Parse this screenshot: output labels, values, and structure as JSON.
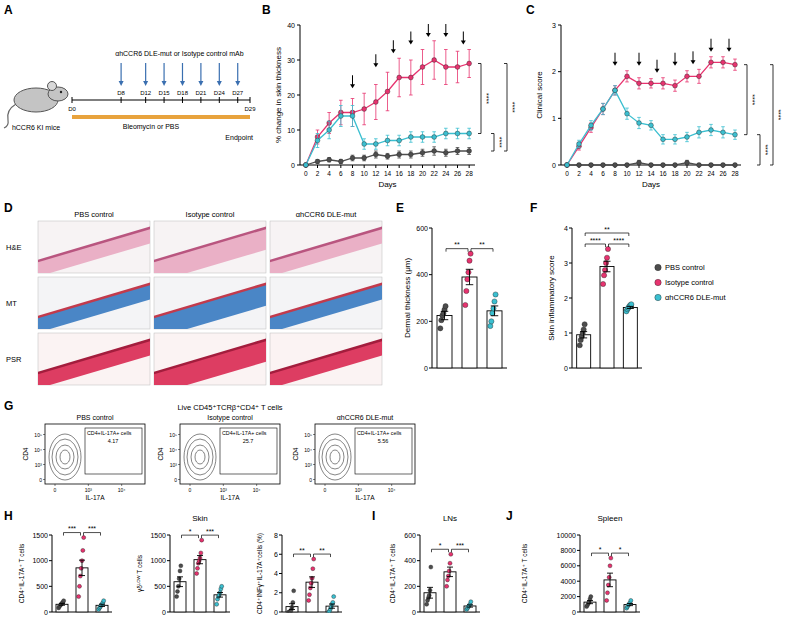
{
  "schematic": {
    "panel": "A",
    "mouse": "hCCR6 KI mice",
    "treatment": "αhCCR6 DLE-mut or Isotype control mAb",
    "challenge": "Bleomycin or PBS",
    "endpoint": "Endpoint",
    "days": [
      {
        "value": 0,
        "label": "D0"
      },
      {
        "value": 8,
        "label": "D8"
      },
      {
        "value": 12,
        "label": "D12"
      },
      {
        "value": 15,
        "label": "D15"
      },
      {
        "value": 18,
        "label": "D18"
      },
      {
        "value": 21,
        "label": "D21"
      },
      {
        "value": 24,
        "label": "D24"
      },
      {
        "value": 27,
        "label": "D27"
      },
      {
        "value": 29,
        "label": "D29"
      }
    ],
    "dose_days": [
      8,
      12,
      15,
      18,
      21,
      24,
      27
    ]
  },
  "histology": {
    "panel": "D",
    "columns": [
      "PBS control",
      "Isotype control",
      "αhCCR6 DLE-mut"
    ],
    "rows": [
      "H&E",
      "MT",
      "PSR"
    ]
  },
  "flow": {
    "panel": "G",
    "title": "Live CD45⁺TCRβ⁺CD4⁺ T cells",
    "xlabel": "IL-17A",
    "ylabel": "CD4",
    "x_tick_labels": [
      "0",
      "10³",
      "10⁴"
    ],
    "y_tick_labels": [
      "0",
      "10³",
      "10⁴",
      "10⁵"
    ],
    "plots": [
      {
        "title": "PBS control",
        "gate": "CD4+IL-17A+ cells",
        "percent": 4.17
      },
      {
        "title": "Isotype control",
        "gate": "CD4+IL-17A+ cells",
        "percent": 25.7
      },
      {
        "title": "αhCCR6 DLE-mut",
        "gate": "CD4+IL-17A+ cells",
        "percent": 5.56
      }
    ]
  },
  "chart_data": [
    {
      "panel": "B",
      "type": "line",
      "marker": "circle",
      "xlabel": "Days",
      "ylabel": "% change in skin thickness",
      "x": [
        0,
        2,
        4,
        6,
        8,
        10,
        12,
        14,
        16,
        18,
        20,
        22,
        24,
        26,
        28
      ],
      "xlim": [
        -1,
        29
      ],
      "xticks": [
        0,
        2,
        4,
        6,
        8,
        10,
        12,
        14,
        16,
        18,
        20,
        22,
        24,
        26,
        28
      ],
      "ylim": [
        0,
        40
      ],
      "yticks": [
        0,
        10,
        20,
        30,
        40
      ],
      "series": [
        {
          "color": "#4d4d4d",
          "values": [
            0,
            1,
            1.5,
            1,
            2,
            2,
            3,
            2.5,
            3,
            3,
            3.5,
            4,
            3.5,
            4,
            4
          ],
          "errors": [
            0,
            0.5,
            0.6,
            0.6,
            0.8,
            0.8,
            1,
            0.8,
            1,
            1,
            1,
            1.2,
            1,
            1,
            1
          ]
        },
        {
          "color": "#e7336f",
          "values": [
            0,
            8,
            12,
            15,
            15,
            16,
            18,
            21,
            25,
            25,
            28,
            30,
            28,
            28,
            29
          ],
          "errors": [
            0,
            2,
            3,
            3.5,
            4,
            4.5,
            5,
            5.5,
            5.5,
            5,
            5,
            5.5,
            5,
            4.5,
            4
          ]
        },
        {
          "color": "#3bbfd0",
          "values": [
            0,
            7,
            10,
            14,
            14,
            6,
            6,
            7,
            7,
            8,
            8,
            8,
            9,
            9,
            9
          ],
          "errors": [
            0,
            2,
            2.5,
            3,
            3,
            1.5,
            1.5,
            1.5,
            1.5,
            1.5,
            1.5,
            1.5,
            1.5,
            1.5,
            1.5
          ]
        }
      ],
      "arrows": [
        8,
        12,
        15,
        18,
        21,
        24,
        27
      ],
      "significance": [
        {
          "text": "****",
          "from": 1,
          "to": 2
        },
        {
          "text": "****",
          "from": 0,
          "to": 2
        },
        {
          "text": "****",
          "from": 0,
          "to": 1
        }
      ]
    },
    {
      "panel": "C",
      "type": "line",
      "marker": "circle",
      "xlabel": "Days",
      "ylabel": "Clinical score",
      "x": [
        0,
        2,
        4,
        6,
        8,
        10,
        12,
        14,
        16,
        18,
        20,
        22,
        24,
        26,
        28
      ],
      "xlim": [
        -1,
        29
      ],
      "xticks": [
        0,
        2,
        4,
        6,
        8,
        10,
        12,
        14,
        16,
        18,
        20,
        22,
        24,
        26,
        28
      ],
      "ylim": [
        0,
        3
      ],
      "yticks": [
        0,
        1,
        2,
        3
      ],
      "series": [
        {
          "color": "#4d4d4d",
          "values": [
            0,
            0,
            0,
            0,
            0,
            0,
            0.05,
            0,
            0,
            0,
            0.05,
            0,
            0,
            0,
            0
          ],
          "errors": [
            0,
            0,
            0,
            0,
            0,
            0,
            0.05,
            0,
            0,
            0,
            0.05,
            0,
            0,
            0,
            0
          ]
        },
        {
          "color": "#e7336f",
          "values": [
            0,
            0.4,
            0.8,
            1.2,
            1.6,
            1.9,
            1.75,
            1.75,
            1.75,
            1.7,
            1.9,
            1.9,
            2.2,
            2.2,
            2.15
          ],
          "errors": [
            0,
            0.08,
            0.1,
            0.12,
            0.1,
            0.12,
            0.12,
            0.1,
            0.12,
            0.12,
            0.12,
            0.15,
            0.12,
            0.12,
            0.12
          ]
        },
        {
          "color": "#3bbfd0",
          "values": [
            0,
            0.45,
            0.85,
            1.2,
            1.6,
            1.1,
            0.9,
            0.85,
            0.55,
            0.55,
            0.6,
            0.7,
            0.75,
            0.7,
            0.65
          ],
          "errors": [
            0,
            0.08,
            0.1,
            0.12,
            0.1,
            0.12,
            0.12,
            0.1,
            0.1,
            0.1,
            0.1,
            0.12,
            0.12,
            0.12,
            0.1
          ]
        }
      ],
      "arrows": [
        8,
        12,
        15,
        18,
        21,
        24,
        27
      ],
      "significance": [
        {
          "text": "****",
          "from": 1,
          "to": 2
        },
        {
          "text": "****",
          "from": 0,
          "to": 2
        },
        {
          "text": "****",
          "from": 0,
          "to": 1
        }
      ]
    },
    {
      "panel": "E",
      "type": "bar",
      "ylabel": "Dermal thickness (μm)",
      "categories": [
        null
      ],
      "tick_labels": "y",
      "ylim": [
        0,
        600
      ],
      "yticks": [
        0,
        200,
        400,
        600
      ],
      "series": [
        {
          "color": "#4d4d4d",
          "values": [
            225
          ],
          "errors": [
            18
          ],
          "points": [
            170,
            205,
            225,
            235,
            250,
            265
          ]
        },
        {
          "color": "#e7336f",
          "values": [
            390
          ],
          "errors": [
            33
          ],
          "points": [
            270,
            330,
            380,
            410,
            460,
            490
          ]
        },
        {
          "color": "#3bbfd0",
          "values": [
            245
          ],
          "errors": [
            21
          ],
          "points": [
            180,
            200,
            235,
            255,
            285,
            315
          ]
        }
      ],
      "significance": [
        {
          "text": "**",
          "from": 0,
          "to": 1
        },
        {
          "text": "**",
          "from": 1,
          "to": 2
        }
      ]
    },
    {
      "panel": "F",
      "type": "bar",
      "ylabel": "Skin inflammatory score",
      "categories": [
        null
      ],
      "tick_labels": "y",
      "ylim": [
        0,
        4
      ],
      "yticks": [
        0,
        1,
        2,
        3,
        4
      ],
      "legend": "right",
      "series": [
        {
          "name": "PBS control",
          "color": "#4d4d4d",
          "values": [
            0.95
          ],
          "errors": [
            0.09
          ],
          "points": [
            0.65,
            0.8,
            0.9,
            1.0,
            1.1,
            1.25
          ]
        },
        {
          "name": "Isotype control",
          "color": "#e7336f",
          "values": [
            2.9
          ],
          "errors": [
            0.15
          ],
          "points": [
            2.4,
            2.65,
            2.8,
            3.0,
            3.15,
            3.4
          ]
        },
        {
          "name": "αhCCR6 DLE-mut",
          "color": "#3bbfd0",
          "values": [
            1.73
          ],
          "errors": [
            0.03
          ],
          "points": [
            1.62,
            1.68,
            1.72,
            1.76,
            1.8,
            1.82
          ]
        }
      ],
      "significance": [
        {
          "text": "****",
          "from": 0,
          "to": 1
        },
        {
          "text": "****",
          "from": 1,
          "to": 2
        },
        {
          "text": "**",
          "from": 0,
          "to": 2
        }
      ]
    },
    {
      "panel": "H",
      "type": "bar",
      "ylabel": "CD4⁺IL-17A⁺ T cells",
      "categories": [
        null
      ],
      "tick_labels": "y",
      "ylim": [
        0,
        1500
      ],
      "yticks": [
        0,
        500,
        1000,
        1500
      ],
      "series": [
        {
          "color": "#4d4d4d",
          "values": [
            150
          ],
          "errors": [
            18
          ],
          "points": [
            80,
            110,
            130,
            150,
            170,
            190,
            220
          ]
        },
        {
          "color": "#e7336f",
          "values": [
            860
          ],
          "errors": [
            150
          ],
          "points": [
            300,
            500,
            700,
            850,
            1000,
            1200,
            1450
          ]
        },
        {
          "color": "#3bbfd0",
          "values": [
            130
          ],
          "errors": [
            22
          ],
          "points": [
            50,
            80,
            100,
            130,
            150,
            180,
            220
          ]
        }
      ],
      "significance": [
        {
          "text": "***",
          "from": 0,
          "to": 1
        },
        {
          "text": "***",
          "from": 1,
          "to": 2
        }
      ]
    },
    {
      "type": "bar",
      "title": "Skin",
      "ylabel": "γδᴸᴼᵂ T cells",
      "categories": [
        null
      ],
      "tick_labels": "y",
      "ylim": [
        0,
        1500
      ],
      "yticks": [
        0,
        500,
        1000,
        1500
      ],
      "series": [
        {
          "color": "#4d4d4d",
          "values": [
            590
          ],
          "errors": [
            95
          ],
          "points": [
            300,
            400,
            500,
            650,
            800,
            900
          ]
        },
        {
          "color": "#e7336f",
          "values": [
            1020
          ],
          "errors": [
            80
          ],
          "points": [
            750,
            850,
            950,
            1000,
            1050,
            1150,
            1400
          ]
        },
        {
          "color": "#3bbfd0",
          "values": [
            335
          ],
          "errors": [
            45
          ],
          "points": [
            150,
            250,
            300,
            330,
            380,
            450,
            500
          ]
        }
      ],
      "significance": [
        {
          "text": "*",
          "from": 0,
          "to": 1
        },
        {
          "text": "***",
          "from": 1,
          "to": 2
        }
      ]
    },
    {
      "type": "bar",
      "ylabel": "CD4⁺INFγ⁺IL-17A⁺cells (%)",
      "categories": [
        null
      ],
      "tick_labels": "y",
      "ylim": [
        0,
        8
      ],
      "yticks": [
        0,
        2,
        4,
        6,
        8
      ],
      "series": [
        {
          "color": "#4d4d4d",
          "values": [
            0.56
          ],
          "errors": [
            0.3
          ],
          "points": [
            0,
            0,
            0,
            0.2,
            0.5,
            1.0,
            2.2
          ]
        },
        {
          "color": "#e7336f",
          "values": [
            3.1
          ],
          "errors": [
            0.55
          ],
          "points": [
            1.2,
            1.8,
            2.5,
            3,
            3.5,
            4.5,
            5.5
          ]
        },
        {
          "color": "#3bbfd0",
          "values": [
            0.61
          ],
          "errors": [
            0.22
          ],
          "points": [
            0,
            0.1,
            0.3,
            0.5,
            0.8,
            1,
            1.6
          ]
        }
      ],
      "significance": [
        {
          "text": "**",
          "from": 0,
          "to": 1
        },
        {
          "text": "**",
          "from": 1,
          "to": 2
        }
      ]
    },
    {
      "panel": "I",
      "type": "bar",
      "title": "LNs",
      "ylabel": "CD4⁺IL-17A⁺ T cells",
      "categories": [
        null
      ],
      "tick_labels": "y",
      "ylim": [
        0,
        600
      ],
      "yticks": [
        0,
        200,
        400,
        600
      ],
      "series": [
        {
          "color": "#4d4d4d",
          "values": [
            150
          ],
          "errors": [
            42
          ],
          "points": [
            60,
            90,
            110,
            130,
            170,
            350
          ]
        },
        {
          "color": "#e7336f",
          "values": [
            313
          ],
          "errors": [
            37
          ],
          "points": [
            200,
            250,
            280,
            320,
            380,
            450
          ]
        },
        {
          "color": "#3bbfd0",
          "values": [
            47
          ],
          "errors": [
            9
          ],
          "points": [
            20,
            30,
            40,
            50,
            60,
            80
          ]
        }
      ],
      "significance": [
        {
          "text": "*",
          "from": 0,
          "to": 1
        },
        {
          "text": "***",
          "from": 1,
          "to": 2
        }
      ]
    },
    {
      "panel": "J",
      "type": "bar",
      "title": "Spleen",
      "ylabel": "CD4⁺IL-17A⁺ T cells",
      "categories": [
        null
      ],
      "tick_labels": "y",
      "ylim": [
        0,
        10000
      ],
      "yticks": [
        0,
        2000,
        4000,
        6000,
        8000,
        10000
      ],
      "series": [
        {
          "color": "#4d4d4d",
          "values": [
            1283
          ],
          "errors": [
            200
          ],
          "points": [
            700,
            900,
            1100,
            1300,
            1700,
            2000
          ]
        },
        {
          "color": "#e7336f",
          "values": [
            4167
          ],
          "errors": [
            880
          ],
          "points": [
            1500,
            2500,
            3500,
            4500,
            6000,
            7000
          ]
        },
        {
          "color": "#3bbfd0",
          "values": [
            967
          ],
          "errors": [
            140
          ],
          "points": [
            500,
            700,
            900,
            1000,
            1200,
            1500
          ]
        }
      ],
      "significance": [
        {
          "text": "*",
          "from": 0,
          "to": 1
        },
        {
          "text": "*",
          "from": 1,
          "to": 2
        }
      ]
    }
  ]
}
